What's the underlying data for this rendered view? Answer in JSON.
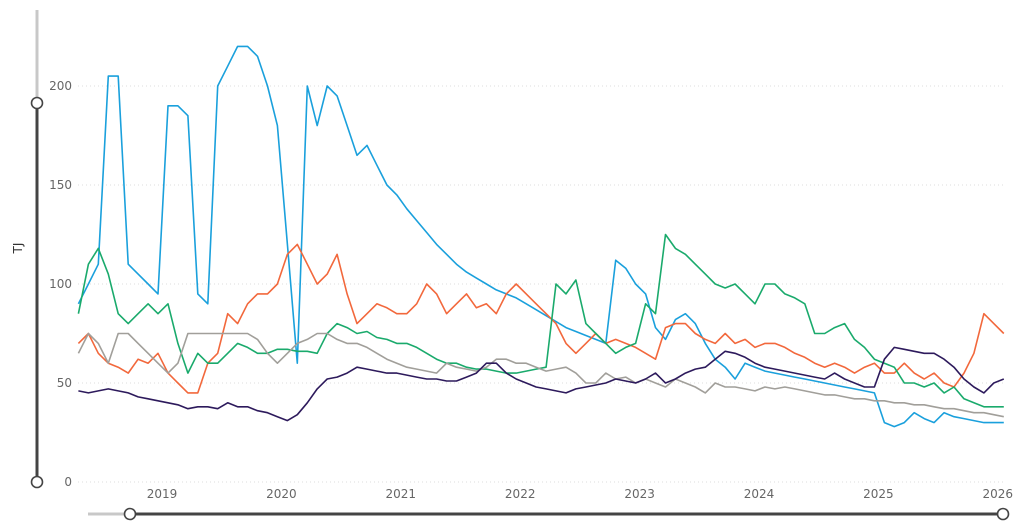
{
  "chart_data": {
    "type": "line",
    "title": "",
    "xlabel": "",
    "ylabel": "TJ",
    "ylim": [
      0,
      225
    ],
    "yticks": [
      "0",
      "50",
      "100",
      "150",
      "200"
    ],
    "xticks": [
      "2019",
      "2020",
      "2021",
      "2022",
      "2023",
      "2024",
      "2025",
      "2026"
    ],
    "grid": "horizontal dotted",
    "legend": "none",
    "x_start": "2018-04",
    "x_interval": "monthly",
    "series": [
      {
        "color": "#1AA0DC",
        "values": [
          90,
          100,
          110,
          205,
          205,
          110,
          105,
          100,
          95,
          190,
          190,
          185,
          95,
          90,
          200,
          210,
          220,
          220,
          215,
          200,
          180,
          120,
          60,
          200,
          180,
          200,
          195,
          180,
          165,
          170,
          160,
          150,
          145,
          138,
          132,
          126,
          120,
          115,
          110,
          106,
          103,
          100,
          97,
          95,
          93,
          90,
          87,
          84,
          81,
          78,
          76,
          74,
          72,
          70,
          112,
          108,
          100,
          95,
          78,
          72,
          82,
          85,
          80,
          70,
          62,
          58,
          52,
          60,
          58,
          56,
          55,
          54,
          53,
          52,
          51,
          50,
          49,
          48,
          47,
          46,
          45,
          30,
          28,
          30,
          35,
          32,
          30,
          35,
          33,
          32,
          31,
          30,
          30,
          30
        ]
      },
      {
        "color": "#F2683C",
        "values": [
          70,
          75,
          65,
          60,
          58,
          55,
          62,
          60,
          65,
          55,
          50,
          45,
          45,
          60,
          65,
          85,
          80,
          90,
          95,
          95,
          100,
          115,
          120,
          110,
          100,
          105,
          115,
          95,
          80,
          85,
          90,
          88,
          85,
          85,
          90,
          100,
          95,
          85,
          90,
          95,
          88,
          90,
          85,
          95,
          100,
          95,
          90,
          85,
          80,
          70,
          65,
          70,
          75,
          70,
          72,
          70,
          68,
          65,
          62,
          78,
          80,
          80,
          75,
          72,
          70,
          75,
          70,
          72,
          68,
          70,
          70,
          68,
          65,
          63,
          60,
          58,
          60,
          58,
          55,
          58,
          60,
          55,
          55,
          60,
          55,
          52,
          55,
          50,
          48,
          55,
          65,
          85,
          80,
          75
        ]
      },
      {
        "color": "#1AAA6C",
        "values": [
          85,
          110,
          118,
          105,
          85,
          80,
          85,
          90,
          85,
          90,
          70,
          55,
          65,
          60,
          60,
          65,
          70,
          68,
          65,
          65,
          67,
          67,
          66,
          66,
          65,
          75,
          80,
          78,
          75,
          76,
          73,
          72,
          70,
          70,
          68,
          65,
          62,
          60,
          60,
          58,
          57,
          57,
          56,
          55,
          55,
          56,
          57,
          58,
          100,
          95,
          102,
          80,
          75,
          70,
          65,
          68,
          70,
          90,
          85,
          125,
          118,
          115,
          110,
          105,
          100,
          98,
          100,
          95,
          90,
          100,
          100,
          95,
          93,
          90,
          75,
          75,
          78,
          80,
          72,
          68,
          62,
          60,
          58,
          50,
          50,
          48,
          50,
          45,
          48,
          42,
          40,
          38,
          38,
          38
        ]
      },
      {
        "color": "#A19F9A",
        "values": [
          65,
          75,
          70,
          60,
          75,
          75,
          70,
          65,
          60,
          55,
          60,
          75,
          75,
          75,
          75,
          75,
          75,
          75,
          72,
          65,
          60,
          65,
          70,
          72,
          75,
          75,
          72,
          70,
          70,
          68,
          65,
          62,
          60,
          58,
          57,
          56,
          55,
          60,
          58,
          57,
          56,
          58,
          62,
          62,
          60,
          60,
          58,
          56,
          57,
          58,
          55,
          50,
          50,
          55,
          52,
          53,
          50,
          52,
          50,
          48,
          52,
          50,
          48,
          45,
          50,
          48,
          48,
          47,
          46,
          48,
          47,
          48,
          47,
          46,
          45,
          44,
          44,
          43,
          42,
          42,
          41,
          41,
          40,
          40,
          39,
          39,
          38,
          37,
          37,
          36,
          35,
          35,
          34,
          33
        ]
      },
      {
        "color": "#2D1A5C",
        "values": [
          46,
          45,
          46,
          47,
          46,
          45,
          43,
          42,
          41,
          40,
          39,
          37,
          38,
          38,
          37,
          40,
          38,
          38,
          36,
          35,
          33,
          31,
          34,
          40,
          47,
          52,
          53,
          55,
          58,
          57,
          56,
          55,
          55,
          54,
          53,
          52,
          52,
          51,
          51,
          53,
          55,
          60,
          60,
          55,
          52,
          50,
          48,
          47,
          46,
          45,
          47,
          48,
          49,
          50,
          52,
          51,
          50,
          52,
          55,
          50,
          52,
          55,
          57,
          58,
          62,
          66,
          65,
          63,
          60,
          58,
          57,
          56,
          55,
          54,
          53,
          52,
          55,
          52,
          50,
          48,
          48,
          62,
          68,
          67,
          66,
          65,
          65,
          62,
          58,
          52,
          48,
          45,
          50,
          52
        ]
      }
    ]
  }
}
